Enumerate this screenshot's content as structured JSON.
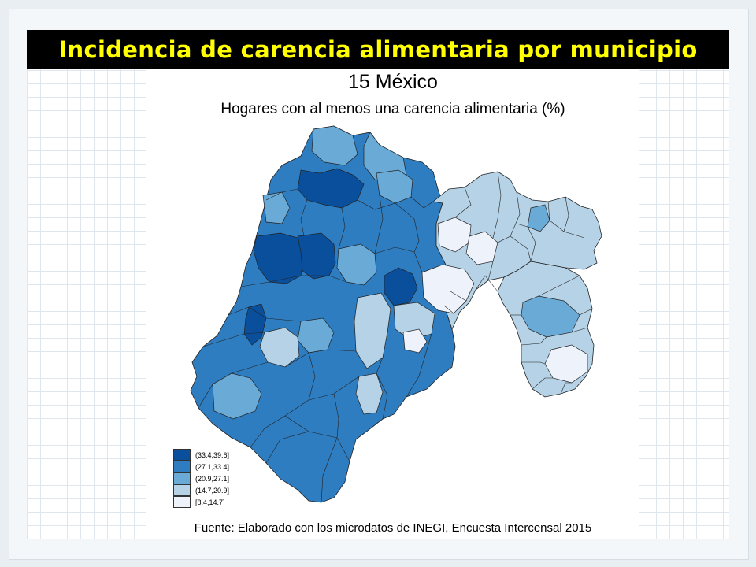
{
  "slide": {
    "title": "Incidencia de carencia alimentaria por municipio"
  },
  "map": {
    "title": "15 México",
    "subtitle": "Hogares con al menos una carencia alimentaria (%)",
    "source": "Fuente: Elaborado con los microdatos de INEGI, Encuesta Intercensal 2015",
    "colors": {
      "class1": "#0a4f9c",
      "class2": "#2f7dc1",
      "class3": "#6aaad6",
      "class4": "#b6d2e6",
      "class5": "#eef2fb",
      "border": "#222222"
    },
    "legend": [
      {
        "label": "(33.4,39.6]",
        "color": "#0a4f9c"
      },
      {
        "label": "(27.1,33.4]",
        "color": "#2f7dc1"
      },
      {
        "label": "(20.9,27.1]",
        "color": "#6aaad6"
      },
      {
        "label": "(14.7,20.9]",
        "color": "#b6d2e6"
      },
      {
        "label": "[8.4,14.7]",
        "color": "#eef2fb"
      }
    ]
  }
}
